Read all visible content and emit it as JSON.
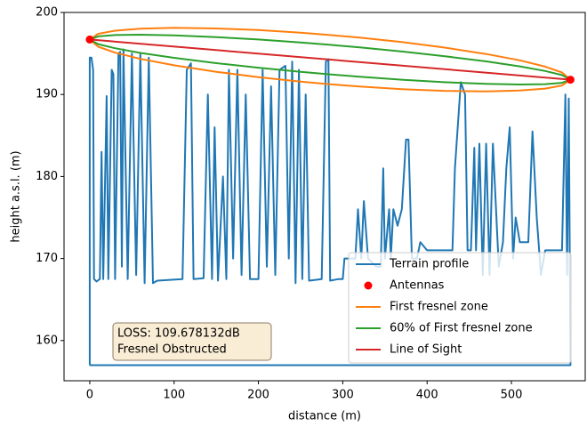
{
  "chart_data": {
    "type": "line",
    "xlabel": "distance (m)",
    "ylabel": "height a.s.l. (m)",
    "xlim": [
      -30.5,
      587.5
    ],
    "ylim": [
      155.1,
      200
    ],
    "xticks": [
      0,
      100,
      200,
      300,
      400,
      500
    ],
    "yticks": [
      160,
      170,
      180,
      190,
      200
    ],
    "legend": "lower right",
    "annotation": [
      "LOSS: 109.678132dB",
      "Fresnel Obstructed"
    ],
    "series": [
      {
        "name": "Terrain profile",
        "type": "line",
        "color": "#1f77b4",
        "x": [
          0,
          0,
          2,
          4,
          5,
          8,
          12,
          14,
          16,
          20,
          22,
          26,
          28,
          30,
          34,
          36,
          38,
          40,
          45,
          50,
          55,
          60,
          65,
          70,
          75,
          80,
          110,
          115,
          120,
          123,
          135,
          140,
          145,
          148,
          152,
          158,
          162,
          165,
          170,
          175,
          180,
          185,
          190,
          200,
          205,
          210,
          215,
          220,
          225,
          232,
          236,
          240,
          244,
          248,
          252,
          256,
          260,
          275,
          280,
          283,
          285,
          295,
          300,
          302,
          315,
          318,
          322,
          325,
          330,
          340,
          345,
          348,
          350,
          355,
          357,
          360,
          365,
          370,
          375,
          378,
          382,
          388,
          392,
          400,
          430,
          433,
          440,
          445,
          448,
          452,
          456,
          458,
          462,
          466,
          470,
          474,
          478,
          485,
          490,
          494,
          498,
          502,
          505,
          510,
          520,
          525,
          530,
          535,
          540,
          560,
          564,
          566,
          568,
          570,
          0
        ],
        "values": [
          157,
          194.5,
          194.5,
          193,
          167.5,
          167.2,
          167.5,
          183,
          167.5,
          189.8,
          167.5,
          193,
          192.5,
          167.5,
          195,
          195.2,
          169,
          195.5,
          167.5,
          195,
          168,
          195,
          167,
          194.5,
          167,
          167.3,
          167.5,
          193,
          193.8,
          167.5,
          167.6,
          190,
          167.5,
          186,
          167.3,
          180,
          167.5,
          193,
          170,
          193,
          168,
          190,
          167.5,
          167.5,
          193,
          169,
          191,
          168,
          193,
          193.5,
          170,
          194,
          167,
          193,
          167.5,
          190,
          167.3,
          167.5,
          194,
          194.3,
          167.3,
          167.5,
          167.5,
          170,
          170,
          176,
          170,
          177,
          170,
          169,
          169,
          181,
          170,
          176,
          170,
          176,
          174,
          176,
          184.5,
          184.5,
          170,
          170,
          172,
          171,
          171,
          181,
          191.5,
          190,
          171,
          171,
          183.5,
          171,
          184,
          168,
          184,
          168,
          184,
          169,
          172,
          181,
          186,
          170,
          175,
          172,
          172,
          185.5,
          175,
          168,
          171,
          171,
          190,
          168,
          189.5,
          157,
          157
        ]
      },
      {
        "name": "Antennas",
        "type": "scatter",
        "color": "#ff0000",
        "x": [
          0,
          570
        ],
        "values": [
          196.7,
          191.8
        ]
      },
      {
        "name": "First fresnel zone",
        "type": "line",
        "color": "#ff7f0e",
        "x": [
          0,
          10,
          30,
          60,
          100,
          150,
          200,
          250,
          285,
          320,
          370,
          420,
          470,
          510,
          540,
          560,
          570,
          560,
          540,
          510,
          470,
          420,
          370,
          320,
          285,
          250,
          200,
          150,
          100,
          60,
          30,
          10,
          0
        ],
        "values": [
          196.7,
          197.4,
          197.78,
          198.02,
          198.12,
          198.05,
          197.85,
          197.53,
          197.25,
          196.93,
          196.39,
          195.73,
          194.94,
          194.16,
          193.4,
          192.68,
          191.8,
          191.1,
          190.72,
          190.48,
          190.38,
          190.45,
          190.65,
          190.97,
          191.25,
          191.57,
          192.11,
          192.77,
          193.56,
          194.34,
          195.1,
          195.82,
          196.7
        ]
      },
      {
        "name": "60% of First fresnel zone",
        "type": "line",
        "color": "#2ca02c",
        "x": [
          0,
          10,
          30,
          60,
          100,
          150,
          200,
          250,
          285,
          320,
          370,
          420,
          470,
          510,
          540,
          560,
          570,
          560,
          540,
          510,
          470,
          420,
          370,
          320,
          285,
          250,
          200,
          150,
          100,
          60,
          30,
          10,
          0
        ],
        "values": [
          196.7,
          197.08,
          197.24,
          197.29,
          197.21,
          197.0,
          196.7,
          196.34,
          196.05,
          195.74,
          195.24,
          194.68,
          194.03,
          193.43,
          192.86,
          192.36,
          191.8,
          191.42,
          191.26,
          191.21,
          191.29,
          191.5,
          191.8,
          192.16,
          192.45,
          192.76,
          193.26,
          193.82,
          194.47,
          195.07,
          195.64,
          196.14,
          196.7
        ]
      },
      {
        "name": "Line of Sight",
        "type": "line",
        "color": "#d62728",
        "x": [
          0,
          570
        ],
        "values": [
          196.7,
          191.8
        ]
      }
    ]
  }
}
